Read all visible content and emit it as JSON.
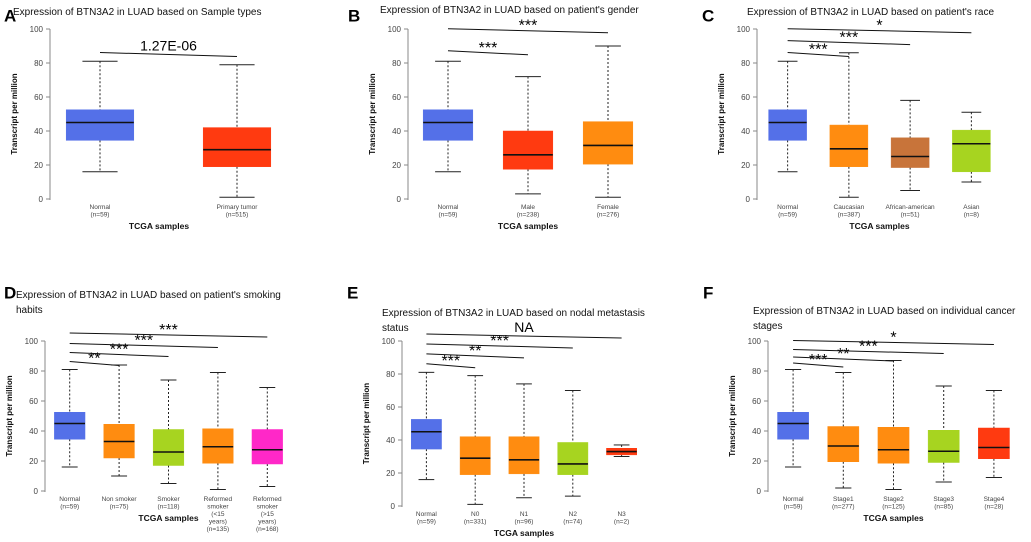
{
  "figure": {
    "y_axis_label": "Transcript per million",
    "x_axis_label": "TCGA samples"
  },
  "panels": [
    {
      "letter": "A",
      "title_lines": [
        "Expression of BTN3A2 in LUAD based on Sample types"
      ]
    },
    {
      "letter": "B",
      "title_lines": [
        "Expression of BTN3A2 in LUAD based on patient's gender"
      ]
    },
    {
      "letter": "C",
      "title_lines": [
        "Expression of BTN3A2 in LUAD based on patient's race"
      ]
    },
    {
      "letter": "D",
      "title_lines": [
        "Expression of BTN3A2 in LUAD based on patient's smoking",
        "habits"
      ]
    },
    {
      "letter": "E",
      "title_lines": [
        "Expression of BTN3A2 in LUAD based on nodal metastasis",
        "status"
      ]
    },
    {
      "letter": "F",
      "title_lines": [
        "Expression of BTN3A2 in LUAD based on individual cancer",
        "stages"
      ]
    }
  ],
  "chart_data": [
    {
      "type": "box",
      "panel": "A",
      "title": "Expression of BTN3A2 in LUAD based on Sample types",
      "xlabel": "TCGA samples",
      "ylabel": "Transcript per million",
      "ylim": [
        0,
        100
      ],
      "yticks": [
        0,
        20,
        40,
        60,
        80,
        100
      ],
      "groups": [
        {
          "name": "Normal",
          "n": "(n=59)",
          "color": "#5470e8",
          "min": 16,
          "q1": 34.5,
          "median": 45,
          "q3": 52.5,
          "max": 81
        },
        {
          "name": "Primary tumor",
          "n": "(n=515)",
          "color": "#ff3a10",
          "min": 1,
          "q1": 19,
          "median": 29,
          "q3": 42,
          "max": 79
        }
      ],
      "comparisons": [
        {
          "from": 0,
          "to": 1,
          "label": "1.27E-06",
          "y": 85
        }
      ]
    },
    {
      "type": "box",
      "panel": "B",
      "title": "Expression of BTN3A2 in LUAD based on patient's gender",
      "xlabel": "TCGA samples",
      "ylabel": "Transcript per million",
      "ylim": [
        0,
        100
      ],
      "yticks": [
        0,
        20,
        40,
        60,
        80,
        100
      ],
      "groups": [
        {
          "name": "Normal",
          "n": "(n=59)",
          "color": "#5470e8",
          "min": 16,
          "q1": 34.5,
          "median": 45,
          "q3": 52.5,
          "max": 81
        },
        {
          "name": "Male",
          "n": "(n=238)",
          "color": "#ff3a10",
          "min": 3,
          "q1": 17.5,
          "median": 26,
          "q3": 40,
          "max": 72
        },
        {
          "name": "Female",
          "n": "(n=276)",
          "color": "#ff8c10",
          "min": 1,
          "q1": 20.5,
          "median": 31.5,
          "q3": 45.5,
          "max": 90
        }
      ],
      "comparisons": [
        {
          "from": 0,
          "to": 1,
          "label": "***",
          "y": 86
        },
        {
          "from": 0,
          "to": 2,
          "label": "***",
          "y": 99
        }
      ]
    },
    {
      "type": "box",
      "panel": "C",
      "title": "Expression of BTN3A2 in LUAD based on patient's race",
      "xlabel": "TCGA samples",
      "ylabel": "Transcript per million",
      "ylim": [
        0,
        100
      ],
      "yticks": [
        0,
        20,
        40,
        60,
        80,
        100
      ],
      "groups": [
        {
          "name": "Normal",
          "n": "(n=59)",
          "color": "#5470e8",
          "min": 16,
          "q1": 34.5,
          "median": 45,
          "q3": 52.5,
          "max": 81
        },
        {
          "name": "Caucasian",
          "n": "(n=387)",
          "color": "#ff8c10",
          "min": 1,
          "q1": 19,
          "median": 29.5,
          "q3": 43.5,
          "max": 86
        },
        {
          "name": "African-american",
          "n": "(n=51)",
          "color": "#c8743a",
          "min": 5,
          "q1": 18.5,
          "median": 25,
          "q3": 36,
          "max": 58
        },
        {
          "name": "Asian",
          "n": "(n=8)",
          "color": "#a7d420",
          "min": 10,
          "q1": 16,
          "median": 32.5,
          "q3": 40.5,
          "max": 51
        }
      ],
      "comparisons": [
        {
          "from": 0,
          "to": 1,
          "label": "***",
          "y": 85
        },
        {
          "from": 0,
          "to": 2,
          "label": "***",
          "y": 92
        },
        {
          "from": 0,
          "to": 3,
          "label": "*",
          "y": 99
        }
      ]
    },
    {
      "type": "box",
      "panel": "D",
      "title": "Expression of BTN3A2 in LUAD based on patient's smoking habits",
      "xlabel": "TCGA samples",
      "ylabel": "Transcript per million",
      "ylim": [
        0,
        100
      ],
      "yticks": [
        0,
        20,
        40,
        60,
        80,
        100
      ],
      "groups": [
        {
          "name": "Normal",
          "n": "(n=59)",
          "color": "#5470e8",
          "min": 16,
          "q1": 34.5,
          "median": 45,
          "q3": 52.5,
          "max": 81
        },
        {
          "name": "Non smoker",
          "n": "(n=75)",
          "color": "#ff8c10",
          "min": 10,
          "q1": 22,
          "median": 33,
          "q3": 44.5,
          "max": 84
        },
        {
          "name": "Smoker",
          "n": "(n=118)",
          "color": "#a7d420",
          "min": 5,
          "q1": 17,
          "median": 26,
          "q3": 41,
          "max": 74
        },
        {
          "name": "Reformed smoker (<15 years)",
          "n": "(n=135)",
          "color": "#ff8c10",
          "min": 1,
          "q1": 18.5,
          "median": 29.5,
          "q3": 41.5,
          "max": 79
        },
        {
          "name": "Reformed smoker (>15 years)",
          "n": "(n=168)",
          "color": "#ff28c8",
          "min": 3,
          "q1": 18,
          "median": 27.5,
          "q3": 41,
          "max": 69
        }
      ],
      "comparisons": [
        {
          "from": 0,
          "to": 1,
          "label": "**",
          "y": 85
        },
        {
          "from": 0,
          "to": 2,
          "label": "***",
          "y": 91
        },
        {
          "from": 0,
          "to": 3,
          "label": "***",
          "y": 97
        },
        {
          "from": 0,
          "to": 4,
          "label": "***",
          "y": 104
        }
      ]
    },
    {
      "type": "box",
      "panel": "E",
      "title": "Expression of BTN3A2 in LUAD based on nodal metastasis status",
      "xlabel": "TCGA samples",
      "ylabel": "Transcript per million",
      "ylim": [
        0,
        100
      ],
      "yticks": [
        0,
        20,
        40,
        60,
        80,
        100
      ],
      "groups": [
        {
          "name": "Normal",
          "n": "(n=59)",
          "color": "#5470e8",
          "min": 16,
          "q1": 34.5,
          "median": 45,
          "q3": 52.5,
          "max": 81
        },
        {
          "name": "N0",
          "n": "(n=331)",
          "color": "#ff8c10",
          "min": 1,
          "q1": 19,
          "median": 29,
          "q3": 42,
          "max": 79
        },
        {
          "name": "N1",
          "n": "(n=96)",
          "color": "#ff8c10",
          "min": 5,
          "q1": 19.5,
          "median": 28,
          "q3": 42,
          "max": 74
        },
        {
          "name": "N2",
          "n": "(n=74)",
          "color": "#a7d420",
          "min": 6,
          "q1": 19,
          "median": 25.5,
          "q3": 38.5,
          "max": 70
        },
        {
          "name": "N3",
          "n": "(n=2)",
          "color": "#ff3a10",
          "min": 30,
          "q1": 31,
          "median": 33,
          "q3": 35,
          "max": 37
        }
      ],
      "comparisons": [
        {
          "from": 0,
          "to": 1,
          "label": "***",
          "y": 85
        },
        {
          "from": 0,
          "to": 2,
          "label": "**",
          "y": 91
        },
        {
          "from": 0,
          "to": 3,
          "label": "***",
          "y": 97
        },
        {
          "from": 0,
          "to": 4,
          "label": "NA",
          "y": 103
        }
      ]
    },
    {
      "type": "box",
      "panel": "F",
      "title": "Expression of BTN3A2 in LUAD based on individual cancer stages",
      "xlabel": "TCGA samples",
      "ylabel": "Transcript per million",
      "ylim": [
        0,
        100
      ],
      "yticks": [
        0,
        20,
        40,
        60,
        80,
        100
      ],
      "groups": [
        {
          "name": "Normal",
          "n": "(n=59)",
          "color": "#5470e8",
          "min": 16,
          "q1": 34.5,
          "median": 45,
          "q3": 52.5,
          "max": 81
        },
        {
          "name": "Stage1",
          "n": "(n=277)",
          "color": "#ff8c10",
          "min": 2,
          "q1": 19.5,
          "median": 30,
          "q3": 43,
          "max": 79
        },
        {
          "name": "Stage2",
          "n": "(n=125)",
          "color": "#ff8c10",
          "min": 1,
          "q1": 18.5,
          "median": 27.5,
          "q3": 42.5,
          "max": 87
        },
        {
          "name": "Stage3",
          "n": "(n=85)",
          "color": "#a7d420",
          "min": 6,
          "q1": 19,
          "median": 26.5,
          "q3": 40.5,
          "max": 70
        },
        {
          "name": "Stage4",
          "n": "(n=28)",
          "color": "#ff3a10",
          "min": 9,
          "q1": 21.5,
          "median": 29,
          "q3": 42,
          "max": 67
        }
      ],
      "comparisons": [
        {
          "from": 0,
          "to": 1,
          "label": "***",
          "y": 84
        },
        {
          "from": 0,
          "to": 2,
          "label": "**",
          "y": 88
        },
        {
          "from": 0,
          "to": 3,
          "label": "***",
          "y": 93
        },
        {
          "from": 0,
          "to": 4,
          "label": "*",
          "y": 99
        }
      ]
    }
  ]
}
